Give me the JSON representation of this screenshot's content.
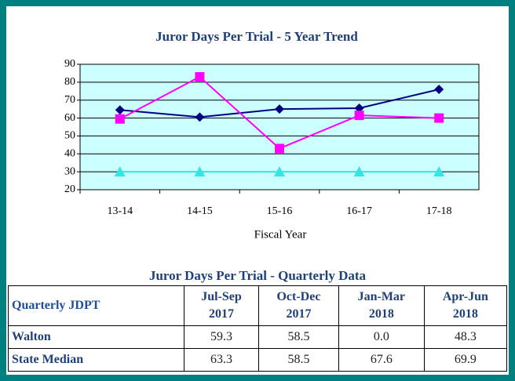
{
  "chart_data": {
    "type": "line",
    "title": "Juror Days Per Trial - 5 Year Trend",
    "x_label": "Fiscal Year",
    "categories": [
      "13-14",
      "14-15",
      "15-16",
      "16-17",
      "17-18"
    ],
    "series": [
      {
        "color": "#000080",
        "marker": "diamond",
        "values": [
          64.5,
          60.5,
          65,
          65.5,
          76
        ]
      },
      {
        "color": "#ff00ff",
        "marker": "square",
        "values": [
          59.5,
          83,
          43,
          61.5,
          60
        ]
      },
      {
        "color": "#33e6e6",
        "marker": "triangle",
        "values": [
          30,
          30,
          30,
          30,
          30
        ]
      }
    ],
    "ylim": [
      20,
      90
    ],
    "yticks": [
      20,
      30,
      40,
      50,
      60,
      70,
      80,
      90
    ],
    "grid": true
  },
  "table": {
    "title": "Juror Days Per Trial - Quarterly Data",
    "header": "Quarterly JDPT",
    "columns": [
      {
        "period": "Jul-Sep",
        "year": "2017"
      },
      {
        "period": "Oct-Dec",
        "year": "2017"
      },
      {
        "period": "Jan-Mar",
        "year": "2018"
      },
      {
        "period": "Apr-Jun",
        "year": "2018"
      }
    ],
    "rows": [
      [
        "Walton",
        "59.3",
        "58.5",
        "0.0",
        "48.3"
      ],
      [
        "State Median",
        "63.3",
        "58.5",
        "67.6",
        "69.9"
      ]
    ]
  }
}
